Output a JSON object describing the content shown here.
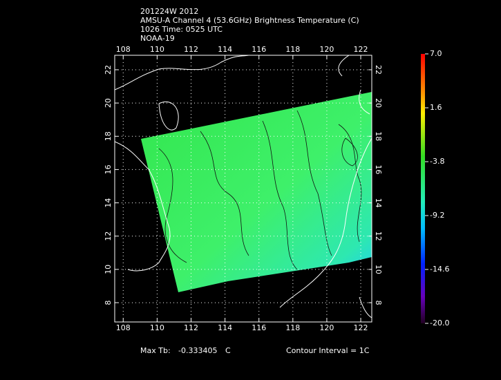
{
  "chart_data": {
    "type": "map",
    "title": [
      "201224W 2012",
      "AMSU-A Channel 4 (53.6GHz) Brightness Temperature (C)",
      "1026 Time: 0525 UTC",
      "NOAA-19"
    ],
    "xlim": [
      107.5,
      122.65
    ],
    "xticks": [
      108,
      110,
      112,
      114,
      116,
      118,
      120,
      122
    ],
    "ylim": [
      6.84,
      22.87
    ],
    "yticks": [
      8,
      10,
      12,
      14,
      16,
      18,
      20,
      22
    ],
    "grid": true,
    "colorbar": {
      "lim": [
        -20,
        7
      ],
      "ticks": [
        {
          "value": 7,
          "label": "7.0"
        },
        {
          "value": 1.6,
          "label": "1.6"
        },
        {
          "value": -3.8,
          "label": "-3.8"
        },
        {
          "value": -9.2,
          "label": "-9.2"
        },
        {
          "value": -14.6,
          "label": "-14.6"
        },
        {
          "value": -20,
          "label": "-20.0"
        }
      ]
    },
    "max_label": "Max Tb:",
    "max_value": -0.333405,
    "max_unit": "C",
    "contour_note": "Contour Interval = 1C"
  }
}
